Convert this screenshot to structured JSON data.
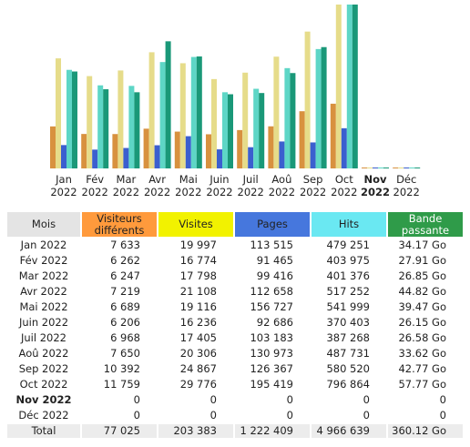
{
  "chart_data": {
    "type": "bar",
    "categories": [
      "Jan 2022",
      "Fév 2022",
      "Mar 2022",
      "Avr 2022",
      "Mai 2022",
      "Juin 2022",
      "Juil 2022",
      "Aoû 2022",
      "Sep 2022",
      "Oct 2022",
      "Nov 2022",
      "Déc 2022"
    ],
    "current_index": 10,
    "series": [
      {
        "color": "#d8913f",
        "axis": "y",
        "values": [
          7633,
          6262,
          6247,
          7219,
          6689,
          6206,
          6968,
          7650,
          10392,
          11759,
          0,
          0
        ]
      },
      {
        "color": "#e6dc8a",
        "axis": "y",
        "values": [
          19997,
          16774,
          17798,
          21108,
          19116,
          16236,
          17405,
          20306,
          24867,
          29776,
          0,
          0
        ]
      },
      {
        "color": "#3b5fcf",
        "axis": "y2",
        "values": [
          113515,
          91465,
          99416,
          112658,
          156727,
          92686,
          103183,
          130973,
          126367,
          195419,
          0,
          0
        ]
      },
      {
        "color": "#5ed6c6",
        "axis": "y2",
        "values": [
          479251,
          403975,
          401376,
          517252,
          541999,
          370403,
          387268,
          487731,
          580520,
          796864,
          0,
          0
        ]
      },
      {
        "color": "#1a9878",
        "axis": "y3",
        "values": [
          34.17,
          27.91,
          26.85,
          44.82,
          39.47,
          26.15,
          26.58,
          33.62,
          42.77,
          57.77,
          0,
          0
        ]
      }
    ]
  },
  "table": {
    "header": [
      "Mois",
      "Visiteurs différents",
      "Visites",
      "Pages",
      "Hits",
      "Bande passante"
    ],
    "header_colors": [
      "#e4e4e4",
      "#ff9a3c",
      "#f2f200",
      "#4677dd",
      "#6ae8f2",
      "#2f9b49"
    ],
    "current_row": 10,
    "rows": [
      [
        "Jan 2022",
        "7 633",
        "19 997",
        "113 515",
        "479 251",
        "34.17 Go"
      ],
      [
        "Fév 2022",
        "6 262",
        "16 774",
        "91 465",
        "403 975",
        "27.91 Go"
      ],
      [
        "Mar 2022",
        "6 247",
        "17 798",
        "99 416",
        "401 376",
        "26.85 Go"
      ],
      [
        "Avr 2022",
        "7 219",
        "21 108",
        "112 658",
        "517 252",
        "44.82 Go"
      ],
      [
        "Mai 2022",
        "6 689",
        "19 116",
        "156 727",
        "541 999",
        "39.47 Go"
      ],
      [
        "Juin 2022",
        "6 206",
        "16 236",
        "92 686",
        "370 403",
        "26.15 Go"
      ],
      [
        "Juil 2022",
        "6 968",
        "17 405",
        "103 183",
        "387 268",
        "26.58 Go"
      ],
      [
        "Aoû 2022",
        "7 650",
        "20 306",
        "130 973",
        "487 731",
        "33.62 Go"
      ],
      [
        "Sep 2022",
        "10 392",
        "24 867",
        "126 367",
        "580 520",
        "42.77 Go"
      ],
      [
        "Oct 2022",
        "11 759",
        "29 776",
        "195 419",
        "796 864",
        "57.77 Go"
      ],
      [
        "Nov 2022",
        "0",
        "0",
        "0",
        "0",
        "0"
      ],
      [
        "Déc 2022",
        "0",
        "0",
        "0",
        "0",
        "0"
      ]
    ],
    "total": [
      "Total",
      "77 025",
      "203 383",
      "1 222 409",
      "4 966 639",
      "360.12 Go"
    ]
  }
}
